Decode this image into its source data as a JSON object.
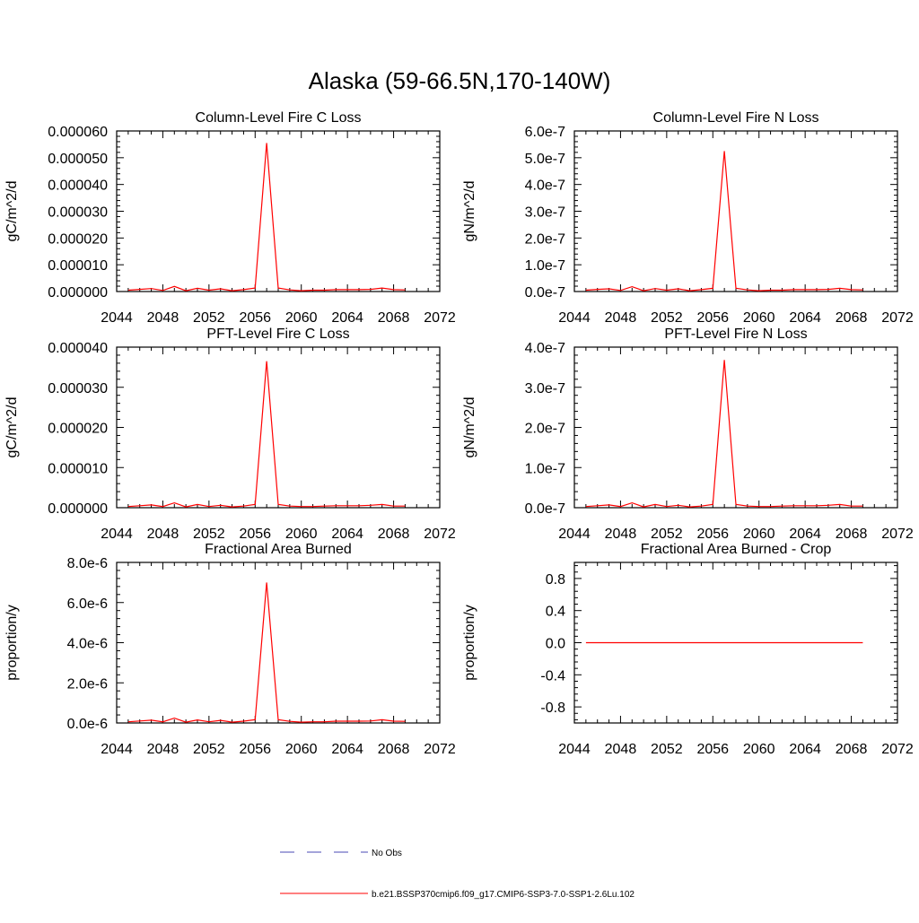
{
  "main_title": "Alaska (59-66.5N,170-140W)",
  "legend": {
    "obs_label": "No Obs",
    "obs_color": "#4a4ab5",
    "model_label": "b.e21.BSSP370cmip6.f09_g17.CMIP6-SSP3-7.0-SSP1-2.6Lu.102",
    "model_color": "#ff0000"
  },
  "chart_data": [
    {
      "type": "line",
      "title": "Column-Level Fire C Loss",
      "ylabel": "gC/m^2/d",
      "xlim": [
        2044,
        2072
      ],
      "xticks": [
        2044,
        2048,
        2052,
        2056,
        2060,
        2064,
        2068,
        2072
      ],
      "ylim": [
        0,
        6e-05
      ],
      "yticks": [
        {
          "v": 0.0,
          "label": "0.000000"
        },
        {
          "v": 1e-05,
          "label": "0.000010"
        },
        {
          "v": 2e-05,
          "label": "0.000020"
        },
        {
          "v": 3e-05,
          "label": "0.000030"
        },
        {
          "v": 4e-05,
          "label": "0.000040"
        },
        {
          "v": 5e-05,
          "label": "0.000050"
        },
        {
          "v": 6e-05,
          "label": "0.000060"
        }
      ],
      "x": [
        2045,
        2046,
        2047,
        2048,
        2049,
        2050,
        2051,
        2052,
        2053,
        2054,
        2055,
        2056,
        2057,
        2058,
        2059,
        2060,
        2061,
        2062,
        2063,
        2064,
        2065,
        2066,
        2067,
        2068,
        2069
      ],
      "values": [
        5e-07,
        8e-07,
        1.1e-06,
        4e-07,
        1.9e-06,
        3e-07,
        1.2e-06,
        5e-07,
        1e-06,
        3e-07,
        7e-07,
        1.3e-06,
        5.55e-05,
        1.3e-06,
        6e-07,
        3e-07,
        5e-07,
        5e-07,
        7e-07,
        7e-07,
        7e-07,
        8e-07,
        1.3e-06,
        7e-07,
        6e-07
      ]
    },
    {
      "type": "line",
      "title": "Column-Level Fire N Loss",
      "ylabel": "gN/m^2/d",
      "xlim": [
        2044,
        2072
      ],
      "xticks": [
        2044,
        2048,
        2052,
        2056,
        2060,
        2064,
        2068,
        2072
      ],
      "ylim": [
        0,
        6e-07
      ],
      "yticks": [
        {
          "v": 0.0,
          "label": "0.0e-7"
        },
        {
          "v": 1e-07,
          "label": "1.0e-7"
        },
        {
          "v": 2e-07,
          "label": "2.0e-7"
        },
        {
          "v": 3e-07,
          "label": "3.0e-7"
        },
        {
          "v": 4e-07,
          "label": "4.0e-7"
        },
        {
          "v": 5e-07,
          "label": "5.0e-7"
        },
        {
          "v": 6e-07,
          "label": "6.0e-7"
        }
      ],
      "x": [
        2045,
        2046,
        2047,
        2048,
        2049,
        2050,
        2051,
        2052,
        2053,
        2054,
        2055,
        2056,
        2057,
        2058,
        2059,
        2060,
        2061,
        2062,
        2063,
        2064,
        2065,
        2066,
        2067,
        2068,
        2069
      ],
      "values": [
        5e-09,
        8e-09,
        1e-08,
        4e-09,
        1.8e-08,
        3e-09,
        1.1e-08,
        5e-09,
        1e-08,
        3e-09,
        7e-09,
        1.2e-08,
        5.25e-07,
        1.2e-08,
        6e-09,
        3e-09,
        5e-09,
        5e-09,
        7e-09,
        7e-09,
        7e-09,
        8e-09,
        1.2e-08,
        7e-09,
        6e-09
      ]
    },
    {
      "type": "line",
      "title": "PFT-Level Fire C Loss",
      "ylabel": "gC/m^2/d",
      "xlim": [
        2044,
        2072
      ],
      "xticks": [
        2044,
        2048,
        2052,
        2056,
        2060,
        2064,
        2068,
        2072
      ],
      "ylim": [
        0,
        4e-05
      ],
      "yticks": [
        {
          "v": 0.0,
          "label": "0.000000"
        },
        {
          "v": 1e-05,
          "label": "0.000010"
        },
        {
          "v": 2e-05,
          "label": "0.000020"
        },
        {
          "v": 3e-05,
          "label": "0.000030"
        },
        {
          "v": 4e-05,
          "label": "0.000040"
        }
      ],
      "x": [
        2045,
        2046,
        2047,
        2048,
        2049,
        2050,
        2051,
        2052,
        2053,
        2054,
        2055,
        2056,
        2057,
        2058,
        2059,
        2060,
        2061,
        2062,
        2063,
        2064,
        2065,
        2066,
        2067,
        2068,
        2069
      ],
      "values": [
        3e-07,
        5e-07,
        7e-07,
        3e-07,
        1.2e-06,
        2e-07,
        8e-07,
        3e-07,
        6e-07,
        2e-07,
        4e-07,
        8e-07,
        3.65e-05,
        8e-07,
        4e-07,
        3e-07,
        3e-07,
        4e-07,
        5e-07,
        5e-07,
        5e-07,
        6e-07,
        8e-07,
        4e-07,
        4e-07
      ]
    },
    {
      "type": "line",
      "title": "PFT-Level Fire N Loss",
      "ylabel": "gN/m^2/d",
      "xlim": [
        2044,
        2072
      ],
      "xticks": [
        2044,
        2048,
        2052,
        2056,
        2060,
        2064,
        2068,
        2072
      ],
      "ylim": [
        0,
        4e-07
      ],
      "yticks": [
        {
          "v": 0.0,
          "label": "0.0e-7"
        },
        {
          "v": 1e-07,
          "label": "1.0e-7"
        },
        {
          "v": 2e-07,
          "label": "2.0e-7"
        },
        {
          "v": 3e-07,
          "label": "3.0e-7"
        },
        {
          "v": 4e-07,
          "label": "4.0e-7"
        }
      ],
      "x": [
        2045,
        2046,
        2047,
        2048,
        2049,
        2050,
        2051,
        2052,
        2053,
        2054,
        2055,
        2056,
        2057,
        2058,
        2059,
        2060,
        2061,
        2062,
        2063,
        2064,
        2065,
        2066,
        2067,
        2068,
        2069
      ],
      "values": [
        3e-09,
        5e-09,
        7e-09,
        3e-09,
        1.2e-08,
        2e-09,
        8e-09,
        3e-09,
        6e-09,
        2e-09,
        4e-09,
        8e-09,
        3.68e-07,
        8e-09,
        4e-09,
        3e-09,
        3e-09,
        4e-09,
        5e-09,
        5e-09,
        5e-09,
        6e-09,
        8e-09,
        4e-09,
        4e-09
      ]
    },
    {
      "type": "line",
      "title": "Fractional Area Burned",
      "ylabel": "proportion/y",
      "xlim": [
        2044,
        2072
      ],
      "xticks": [
        2044,
        2048,
        2052,
        2056,
        2060,
        2064,
        2068,
        2072
      ],
      "ylim": [
        0,
        8e-06
      ],
      "yticks": [
        {
          "v": 0.0,
          "label": "0.0e-6"
        },
        {
          "v": 2e-06,
          "label": "2.0e-6"
        },
        {
          "v": 4e-06,
          "label": "4.0e-6"
        },
        {
          "v": 6e-06,
          "label": "6.0e-6"
        },
        {
          "v": 8e-06,
          "label": "8.0e-6"
        }
      ],
      "x": [
        2045,
        2046,
        2047,
        2048,
        2049,
        2050,
        2051,
        2052,
        2053,
        2054,
        2055,
        2056,
        2057,
        2058,
        2059,
        2060,
        2061,
        2062,
        2063,
        2064,
        2065,
        2066,
        2067,
        2068,
        2069
      ],
      "values": [
        6e-08,
        1e-07,
        1.4e-07,
        6e-08,
        2.4e-07,
        4e-08,
        1.5e-07,
        6e-08,
        1.3e-07,
        4e-08,
        9e-08,
        1.6e-07,
        7e-06,
        1.6e-07,
        8e-08,
        4e-08,
        6e-08,
        6e-08,
        9e-08,
        9e-08,
        9e-08,
        1e-07,
        1.6e-07,
        9e-08,
        8e-08
      ]
    },
    {
      "type": "line",
      "title": "Fractional Area Burned - Crop",
      "ylabel": "proportion/y",
      "xlim": [
        2044,
        2072
      ],
      "xticks": [
        2044,
        2048,
        2052,
        2056,
        2060,
        2064,
        2068,
        2072
      ],
      "ylim": [
        -1.0,
        1.0
      ],
      "yticks": [
        {
          "v": -0.8,
          "label": "-0.8"
        },
        {
          "v": -0.4,
          "label": "-0.4"
        },
        {
          "v": 0.0,
          "label": "0.0"
        },
        {
          "v": 0.4,
          "label": "0.4"
        },
        {
          "v": 0.8,
          "label": "0.8"
        }
      ],
      "x": [
        2045,
        2046,
        2047,
        2048,
        2049,
        2050,
        2051,
        2052,
        2053,
        2054,
        2055,
        2056,
        2057,
        2058,
        2059,
        2060,
        2061,
        2062,
        2063,
        2064,
        2065,
        2066,
        2067,
        2068,
        2069
      ],
      "values": [
        0,
        0,
        0,
        0,
        0,
        0,
        0,
        0,
        0,
        0,
        0,
        0,
        0,
        0,
        0,
        0,
        0,
        0,
        0,
        0,
        0,
        0,
        0,
        0,
        0
      ]
    }
  ]
}
